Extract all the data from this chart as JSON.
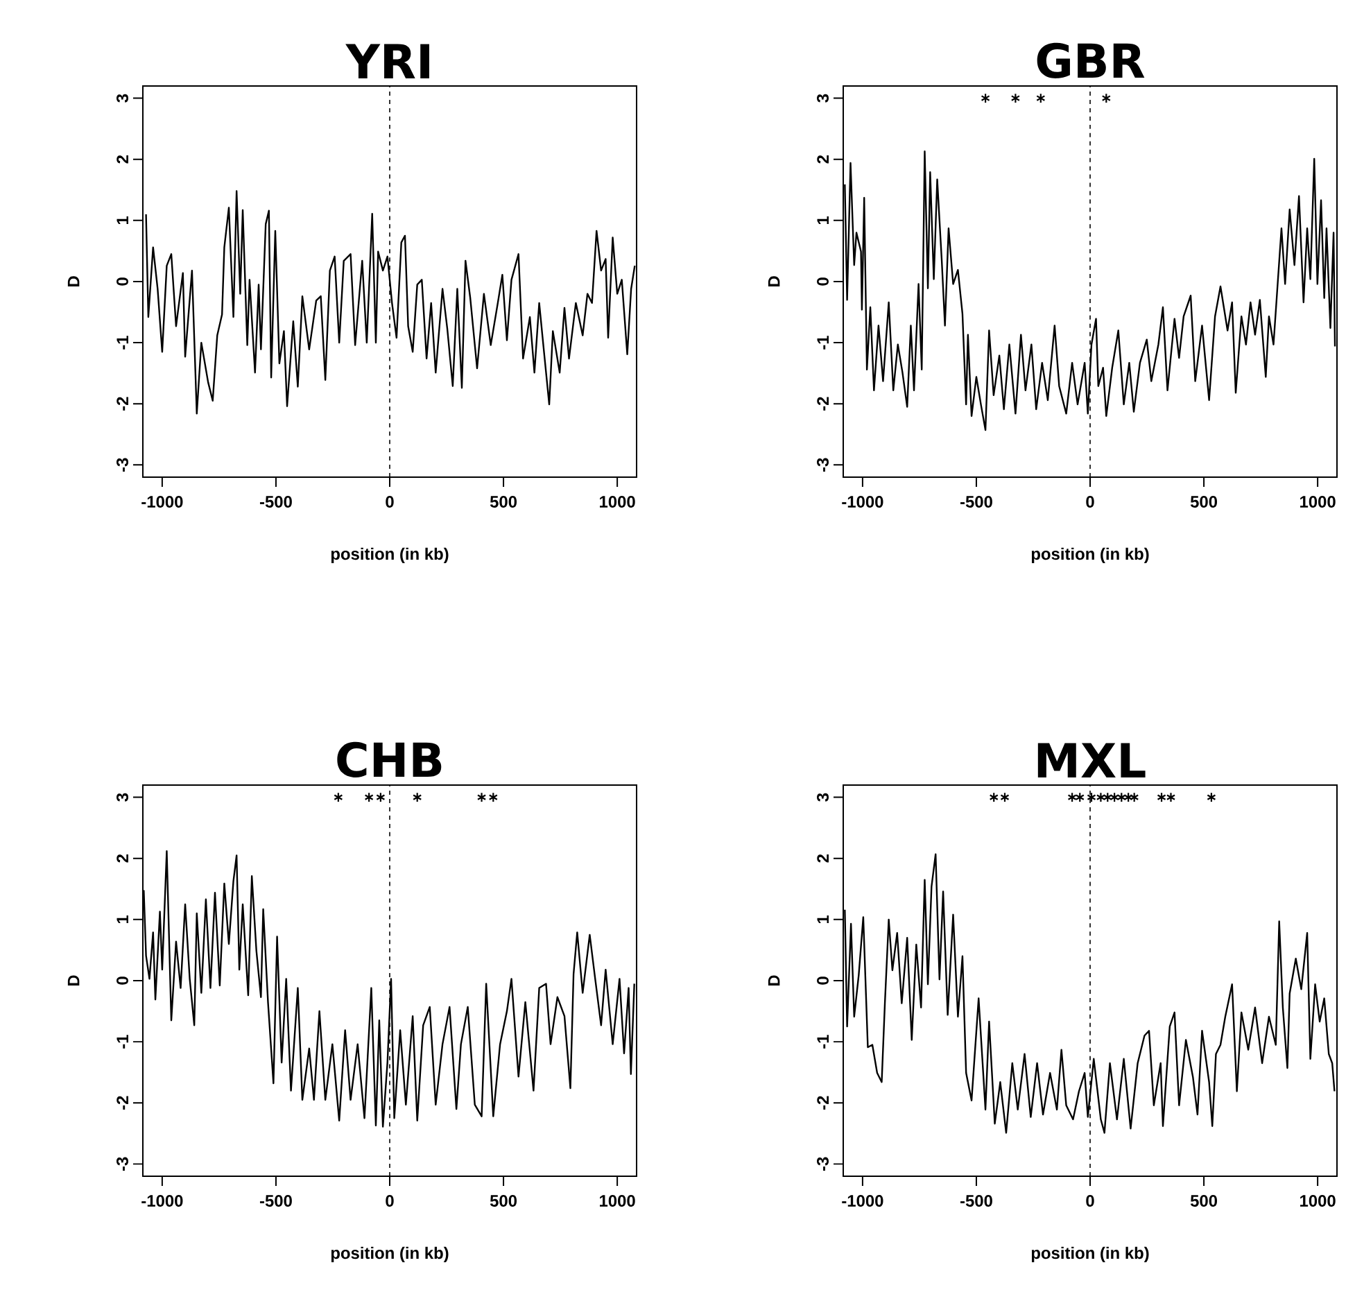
{
  "chart_data": [
    {
      "type": "line",
      "title": "YRI",
      "xlabel": "position (in kb)",
      "ylabel": "D",
      "color": "#000000",
      "xlim": [
        -1085,
        1085
      ],
      "ylim": [
        -3.2,
        3.2
      ],
      "xticks": [
        -1000,
        -500,
        0,
        500,
        1000
      ],
      "yticks": [
        -3,
        -2,
        -1,
        0,
        1,
        2,
        3
      ],
      "series": [
        {
          "type": "line",
          "x": [
            -1071,
            -1061,
            -1040,
            -1020,
            -1000,
            -980,
            -960,
            -939,
            -909,
            -899,
            -869,
            -848,
            -828,
            -798,
            -778,
            -758,
            -737,
            -727,
            -707,
            -687,
            -673,
            -657,
            -646,
            -626,
            -616,
            -592,
            -576,
            -566,
            -545,
            -531,
            -521,
            -503,
            -485,
            -465,
            -451,
            -424,
            -404,
            -384,
            -354,
            -323,
            -303,
            -283,
            -263,
            -242,
            -222,
            -202,
            -172,
            -152,
            -121,
            -101,
            -77,
            -61,
            -51,
            -30,
            -10,
            10,
            30,
            51,
            67,
            81,
            101,
            121,
            141,
            162,
            182,
            202,
            232,
            253,
            277,
            297,
            317,
            333,
            354,
            384,
            414,
            444,
            475,
            495,
            515,
            535,
            566,
            586,
            616,
            636,
            657,
            677,
            701,
            717,
            747,
            768,
            788,
            818,
            848,
            869,
            889,
            909,
            929,
            949,
            960,
            980,
            1000,
            1020,
            1044,
            1061,
            1077
          ],
          "values": [
            1.1,
            -0.58,
            0.56,
            -0.12,
            -1.15,
            0.26,
            0.45,
            -0.73,
            0.14,
            -1.23,
            0.18,
            -2.16,
            -1.0,
            -1.65,
            -1.95,
            -0.88,
            -0.54,
            0.56,
            1.21,
            -0.58,
            1.48,
            -0.2,
            1.17,
            -1.04,
            0.03,
            -1.49,
            -0.05,
            -1.11,
            0.94,
            1.16,
            -1.57,
            0.83,
            -1.34,
            -0.81,
            -2.04,
            -0.65,
            -1.72,
            -0.24,
            -1.11,
            -0.31,
            -0.24,
            -1.61,
            0.18,
            0.41,
            -1.0,
            0.34,
            0.45,
            -1.04,
            0.34,
            -1.0,
            1.11,
            -1.0,
            0.49,
            0.18,
            0.41,
            -0.35,
            -0.92,
            0.64,
            0.75,
            -0.73,
            -1.15,
            -0.05,
            0.03,
            -1.26,
            -0.35,
            -1.49,
            -0.12,
            -0.77,
            -1.71,
            -0.12,
            -1.74,
            0.34,
            -0.27,
            -1.42,
            -0.2,
            -1.04,
            -0.35,
            0.11,
            -0.96,
            0.03,
            0.45,
            -1.26,
            -0.58,
            -1.49,
            -0.35,
            -1.11,
            -2.01,
            -0.81,
            -1.49,
            -0.43,
            -1.26,
            -0.35,
            -0.88,
            -0.2,
            -0.35,
            0.83,
            0.18,
            0.37,
            -0.92,
            0.72,
            -0.2,
            0.03,
            -1.19,
            -0.12,
            0.26
          ]
        }
      ],
      "ref_lines": [
        {
          "axis": "x",
          "value": 0,
          "line_style": "dashed"
        }
      ]
    },
    {
      "type": "line",
      "title": "GBR",
      "xlabel": "position (in kb)",
      "ylabel": "D",
      "color": "#000000",
      "xlim": [
        -1085,
        1085
      ],
      "ylim": [
        -3.2,
        3.2
      ],
      "xticks": [
        -1000,
        -500,
        0,
        500,
        1000
      ],
      "yticks": [
        -3,
        -2,
        -1,
        0,
        1,
        2,
        3
      ],
      "series": [
        {
          "type": "line",
          "x": [
            -1078,
            -1068,
            -1053,
            -1037,
            -1027,
            -1007,
            -1003,
            -993,
            -981,
            -966,
            -950,
            -930,
            -910,
            -885,
            -865,
            -845,
            -825,
            -804,
            -788,
            -774,
            -754,
            -740,
            -727,
            -713,
            -703,
            -687,
            -672,
            -652,
            -638,
            -622,
            -602,
            -581,
            -561,
            -545,
            -537,
            -521,
            -500,
            -480,
            -460,
            -444,
            -424,
            -399,
            -379,
            -355,
            -328,
            -304,
            -284,
            -258,
            -237,
            -211,
            -186,
            -156,
            -136,
            -105,
            -79,
            -55,
            -24,
            -10,
            6,
            26,
            36,
            57,
            71,
            97,
            124,
            148,
            172,
            192,
            219,
            249,
            269,
            300,
            320,
            340,
            371,
            391,
            411,
            442,
            462,
            492,
            523,
            549,
            573,
            604,
            624,
            640,
            665,
            685,
            705,
            725,
            746,
            772,
            786,
            806,
            827,
            841,
            857,
            877,
            898,
            918,
            938,
            954,
            968,
            985,
            999,
            1015,
            1029,
            1039,
            1056,
            1070,
            1076
          ],
          "values": [
            1.59,
            -0.3,
            1.94,
            0.27,
            0.8,
            0.49,
            -0.46,
            1.37,
            -1.44,
            -0.42,
            -1.78,
            -0.72,
            -1.63,
            -0.34,
            -1.78,
            -1.03,
            -1.48,
            -2.05,
            -0.72,
            -1.78,
            -0.04,
            -1.44,
            2.13,
            -0.11,
            1.79,
            0.04,
            1.67,
            0.34,
            -0.72,
            0.87,
            -0.04,
            0.19,
            -0.53,
            -2.01,
            -0.87,
            -2.2,
            -1.56,
            -2.01,
            -2.43,
            -0.8,
            -1.86,
            -1.21,
            -2.09,
            -1.03,
            -2.16,
            -0.87,
            -1.78,
            -1.03,
            -2.09,
            -1.33,
            -1.94,
            -0.72,
            -1.71,
            -2.16,
            -1.33,
            -2.01,
            -1.33,
            -2.16,
            -1.03,
            -0.61,
            -1.71,
            -1.41,
            -2.2,
            -1.41,
            -0.8,
            -2.01,
            -1.33,
            -2.13,
            -1.33,
            -0.95,
            -1.63,
            -1.03,
            -0.42,
            -1.78,
            -0.61,
            -1.25,
            -0.57,
            -0.23,
            -1.63,
            -0.72,
            -1.94,
            -0.57,
            -0.08,
            -0.8,
            -0.34,
            -1.82,
            -0.57,
            -1.03,
            -0.34,
            -0.87,
            -0.3,
            -1.56,
            -0.57,
            -1.03,
            0.11,
            0.87,
            -0.04,
            1.18,
            0.27,
            1.4,
            -0.34,
            0.87,
            0.04,
            2.01,
            -0.04,
            1.33,
            -0.27,
            0.87,
            -0.76,
            0.8,
            -1.06
          ]
        },
        {
          "type": "scatter",
          "marker": "cross",
          "x": [
            -460,
            -328,
            -217,
            71
          ],
          "values": [
            3,
            3,
            3,
            3
          ]
        }
      ],
      "ref_lines": [
        {
          "axis": "x",
          "value": 0,
          "line_style": "dashed"
        }
      ]
    },
    {
      "type": "line",
      "title": "CHB",
      "xlabel": "position (in kb)",
      "ylabel": "D",
      "color": "#000000",
      "xlim": [
        -1085,
        1085
      ],
      "ylim": [
        -3.2,
        3.2
      ],
      "xticks": [
        -1000,
        -500,
        0,
        500,
        1000
      ],
      "yticks": [
        -3,
        -2,
        -1,
        0,
        1,
        2,
        3
      ],
      "series": [
        {
          "type": "line",
          "x": [
            -1081,
            -1071,
            -1056,
            -1040,
            -1030,
            -1010,
            -1000,
            -980,
            -960,
            -939,
            -919,
            -899,
            -879,
            -859,
            -848,
            -828,
            -808,
            -788,
            -768,
            -747,
            -727,
            -707,
            -687,
            -673,
            -661,
            -646,
            -622,
            -606,
            -586,
            -566,
            -556,
            -535,
            -511,
            -495,
            -475,
            -455,
            -434,
            -404,
            -384,
            -354,
            -333,
            -309,
            -283,
            -252,
            -222,
            -196,
            -172,
            -141,
            -111,
            -81,
            -61,
            -46,
            -30,
            -10,
            6,
            20,
            46,
            71,
            101,
            121,
            147,
            176,
            202,
            232,
            263,
            293,
            313,
            343,
            374,
            404,
            424,
            455,
            485,
            515,
            535,
            566,
            596,
            632,
            657,
            687,
            707,
            737,
            768,
            794,
            808,
            824,
            848,
            879,
            903,
            929,
            949,
            980,
            1010,
            1030,
            1050,
            1060,
            1075
          ],
          "values": [
            1.48,
            0.41,
            0.03,
            0.79,
            -0.31,
            1.13,
            0.18,
            2.12,
            -0.65,
            0.64,
            -0.12,
            1.25,
            0.03,
            -0.73,
            1.1,
            -0.2,
            1.33,
            -0.12,
            1.44,
            -0.08,
            1.59,
            0.6,
            1.63,
            2.05,
            0.18,
            1.25,
            -0.24,
            1.71,
            0.49,
            -0.27,
            1.17,
            -0.35,
            -1.68,
            0.72,
            -1.34,
            0.03,
            -1.8,
            -0.12,
            -1.95,
            -1.11,
            -1.95,
            -0.5,
            -1.95,
            -1.04,
            -2.29,
            -0.81,
            -1.95,
            -1.04,
            -2.25,
            -0.12,
            -2.37,
            -0.65,
            -2.39,
            -1.34,
            0.03,
            -2.25,
            -0.81,
            -2.03,
            -0.58,
            -2.29,
            -0.73,
            -0.43,
            -2.03,
            -1.04,
            -0.43,
            -2.1,
            -1.04,
            -0.43,
            -2.03,
            -2.22,
            -0.05,
            -2.22,
            -1.04,
            -0.5,
            0.03,
            -1.57,
            -0.35,
            -1.8,
            -0.12,
            -0.05,
            -1.04,
            -0.27,
            -0.58,
            -1.76,
            0.11,
            0.79,
            -0.2,
            0.75,
            0.03,
            -0.73,
            0.18,
            -1.04,
            0.03,
            -1.19,
            -0.12,
            -1.53,
            -0.05
          ]
        },
        {
          "type": "scatter",
          "marker": "cross",
          "x": [
            -226,
            -91,
            -40,
            121,
            404,
            455
          ],
          "values": [
            3,
            3,
            3,
            3,
            3,
            3
          ]
        }
      ],
      "ref_lines": [
        {
          "axis": "x",
          "value": 0,
          "line_style": "dashed"
        }
      ]
    },
    {
      "type": "line",
      "title": "MXL",
      "xlabel": "position (in kb)",
      "ylabel": "D",
      "color": "#000000",
      "xlim": [
        -1085,
        1085
      ],
      "ylim": [
        -3.2,
        3.2
      ],
      "xticks": [
        -1000,
        -500,
        0,
        500,
        1000
      ],
      "yticks": [
        -3,
        -2,
        -1,
        0,
        1,
        2,
        3
      ],
      "series": [
        {
          "type": "line",
          "x": [
            -1078,
            -1068,
            -1051,
            -1037,
            -1017,
            -997,
            -977,
            -957,
            -936,
            -916,
            -902,
            -885,
            -869,
            -848,
            -828,
            -804,
            -784,
            -764,
            -743,
            -727,
            -713,
            -697,
            -679,
            -662,
            -646,
            -626,
            -602,
            -581,
            -561,
            -545,
            -521,
            -490,
            -460,
            -444,
            -419,
            -395,
            -369,
            -342,
            -318,
            -288,
            -261,
            -233,
            -207,
            -176,
            -146,
            -126,
            -105,
            -75,
            -49,
            -24,
            -10,
            16,
            47,
            63,
            87,
            118,
            148,
            178,
            209,
            239,
            259,
            280,
            310,
            320,
            350,
            371,
            391,
            421,
            452,
            472,
            492,
            523,
            537,
            553,
            573,
            594,
            624,
            645,
            665,
            695,
            725,
            756,
            786,
            816,
            831,
            847,
            867,
            877,
            904,
            928,
            954,
            968,
            989,
            1009,
            1029,
            1049,
            1064,
            1074
          ],
          "values": [
            1.16,
            -0.75,
            0.93,
            -0.59,
            0.09,
            1.04,
            -1.09,
            -1.05,
            -1.51,
            -1.66,
            -0.37,
            1.0,
            0.17,
            0.78,
            -0.37,
            0.7,
            -0.97,
            0.59,
            -0.44,
            1.65,
            -0.06,
            1.54,
            2.07,
            0.02,
            1.46,
            -0.56,
            1.08,
            -0.59,
            0.4,
            -1.51,
            -1.96,
            -0.29,
            -2.11,
            -0.67,
            -2.34,
            -1.66,
            -2.49,
            -1.35,
            -2.11,
            -1.2,
            -2.23,
            -1.35,
            -2.19,
            -1.51,
            -2.11,
            -1.13,
            -2.04,
            -2.27,
            -1.81,
            -1.51,
            -2.23,
            -1.28,
            -2.27,
            -2.49,
            -1.35,
            -2.27,
            -1.28,
            -2.42,
            -1.35,
            -0.9,
            -0.82,
            -2.04,
            -1.35,
            -2.38,
            -0.75,
            -0.52,
            -2.04,
            -0.97,
            -1.58,
            -2.19,
            -0.82,
            -1.66,
            -2.38,
            -1.2,
            -1.05,
            -0.59,
            -0.06,
            -1.81,
            -0.52,
            -1.13,
            -0.44,
            -1.35,
            -0.59,
            -1.05,
            0.97,
            -0.44,
            -1.43,
            -0.21,
            0.36,
            -0.14,
            0.78,
            -1.28,
            -0.06,
            -0.67,
            -0.29,
            -1.2,
            -1.35,
            -1.81
          ]
        },
        {
          "type": "scatter",
          "marker": "cross",
          "x": [
            -423,
            -375,
            -79,
            -45,
            6,
            47,
            77,
            107,
            138,
            168,
            194,
            314,
            355,
            533
          ],
          "values": [
            3,
            3,
            3,
            3,
            3,
            3,
            3,
            3,
            3,
            3,
            3,
            3,
            3,
            3
          ]
        }
      ],
      "ref_lines": [
        {
          "axis": "x",
          "value": 0,
          "line_style": "dashed"
        }
      ]
    }
  ]
}
